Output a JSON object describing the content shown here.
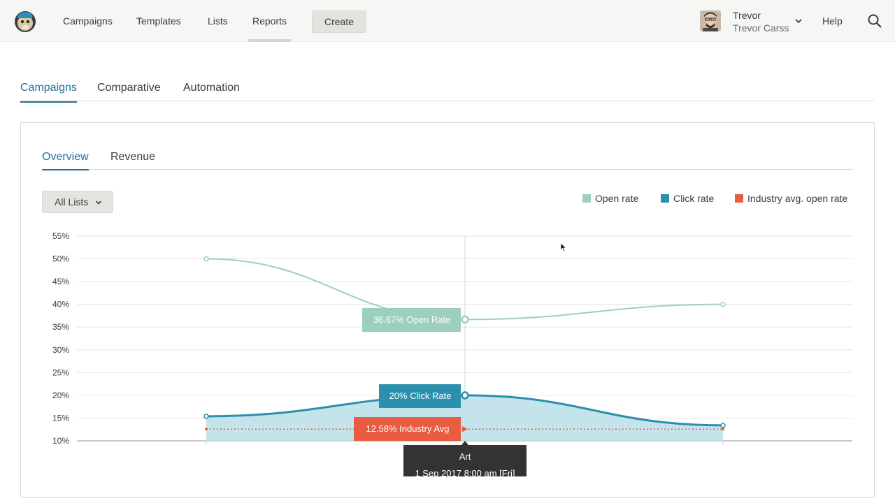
{
  "nav": {
    "items": [
      "Campaigns",
      "Templates",
      "Lists",
      "Reports"
    ],
    "create_label": "Create",
    "help_label": "Help"
  },
  "user": {
    "first_name": "Trevor",
    "full_name": "Trevor Carss"
  },
  "main_tabs": [
    "Campaigns",
    "Comparative",
    "Automation"
  ],
  "sub_tabs": [
    "Overview",
    "Revenue"
  ],
  "list_filter": {
    "selected": "All Lists"
  },
  "colors": {
    "open_rate": "#9dcfbf",
    "click_rate": "#2b8fae",
    "industry_avg": "#e85c41",
    "accent": "#21729a"
  },
  "legend": [
    "Open rate",
    "Click rate",
    "Industry avg. open rate"
  ],
  "tooltips": {
    "open": "36.67% Open Rate",
    "click": "20% Click Rate",
    "industry": "12.58% Industry Avg",
    "campaign_name": "Art",
    "campaign_date": "1 Sep 2017 8:00 am [Fri]"
  },
  "chart_data": {
    "type": "line",
    "ylim": [
      10,
      55
    ],
    "yticks": [
      "55%",
      "50%",
      "45%",
      "40%",
      "35%",
      "30%",
      "25%",
      "20%",
      "15%",
      "10%"
    ],
    "series": [
      {
        "name": "Open rate",
        "values": [
          50,
          36.67,
          40
        ]
      },
      {
        "name": "Click rate",
        "values": [
          15.4,
          20,
          13.4
        ]
      },
      {
        "name": "Industry avg. open rate",
        "values": [
          12.58,
          12.58,
          12.58
        ]
      }
    ],
    "grid": true,
    "legend_position": "top-right"
  }
}
